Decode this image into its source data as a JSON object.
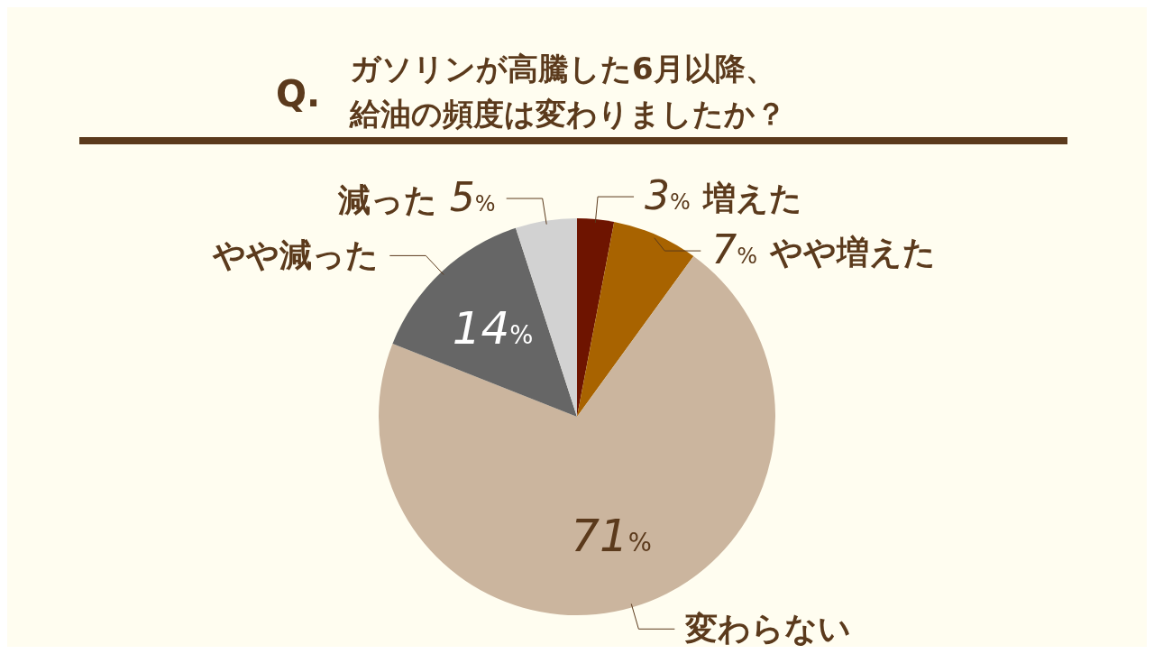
{
  "chart_data": {
    "type": "pie",
    "title": "Q.",
    "subtitle": "ガソリンが高騰した6月以降、給油の頻度は変わりましたか？",
    "categories": [
      "増えた",
      "やや増えた",
      "変わらない",
      "やや減った",
      "減った"
    ],
    "values": [
      3,
      7,
      71,
      14,
      5
    ],
    "value_labels": [
      "3%",
      "7%",
      "71%",
      "14%",
      "5%"
    ],
    "colors": [
      "#6e1400",
      "#a86300",
      "#cbb59e",
      "#666666",
      "#d2d2d2"
    ]
  }
}
